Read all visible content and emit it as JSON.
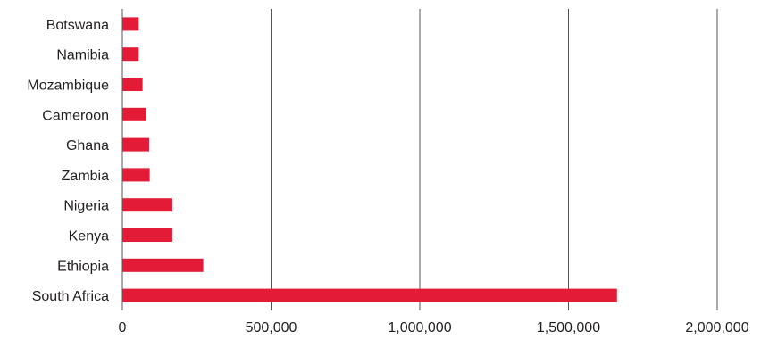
{
  "chart_data": {
    "type": "bar",
    "orientation": "horizontal",
    "title": "",
    "xlabel": "",
    "ylabel": "",
    "categories": [
      "Botswana",
      "Namibia",
      "Mozambique",
      "Cameroon",
      "Ghana",
      "Zambia",
      "Nigeria",
      "Kenya",
      "Ethiopia",
      "South Africa"
    ],
    "values": [
      55000,
      55000,
      68000,
      80000,
      90000,
      92000,
      168000,
      168000,
      272000,
      1663000
    ],
    "xlim": [
      0,
      2000000
    ],
    "ticks": [
      0,
      500000,
      1000000,
      1500000,
      2000000
    ],
    "tick_labels": [
      "0",
      "500,000",
      "1,000,000",
      "1,500,000",
      "2,000,000"
    ],
    "grid": "vertical",
    "legend": "none",
    "bar_color": "#e31b37",
    "grid_color": "#555555"
  }
}
